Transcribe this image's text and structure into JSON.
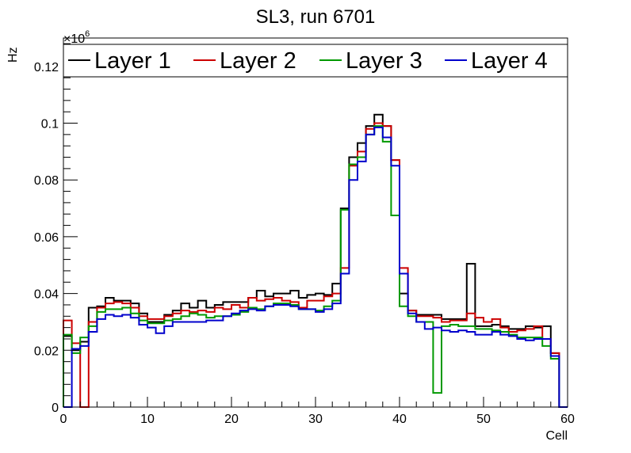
{
  "chart_data": {
    "type": "line",
    "title": "SL3, run 6701",
    "xlabel": "Cell",
    "ylabel": "Hz",
    "y_multiplier_label": "×10",
    "y_multiplier_exp": "6",
    "xlim": [
      0,
      60
    ],
    "ylim": [
      0,
      0.13
    ],
    "x_ticks": [
      0,
      10,
      20,
      30,
      40,
      50,
      60
    ],
    "x_tick_labels": [
      "0",
      "10",
      "20",
      "30",
      "40",
      "50",
      "60"
    ],
    "y_ticks": [
      0,
      0.02,
      0.04,
      0.06,
      0.08,
      0.1,
      0.12
    ],
    "y_tick_labels": [
      "0",
      "0.02",
      "0.04",
      "0.06",
      "0.08",
      "0.1",
      "0.12"
    ],
    "legend_position": "top",
    "bin_edges_start": 0,
    "bin_width": 1,
    "grid": false,
    "series": [
      {
        "name": "Layer 1",
        "color": "#000000",
        "values": [
          0.025,
          0.02,
          0.023,
          0.035,
          0.0355,
          0.0385,
          0.0375,
          0.0375,
          0.0365,
          0.033,
          0.03,
          0.03,
          0.0325,
          0.034,
          0.0365,
          0.035,
          0.0375,
          0.035,
          0.036,
          0.037,
          0.037,
          0.037,
          0.0385,
          0.041,
          0.039,
          0.04,
          0.04,
          0.041,
          0.0385,
          0.0395,
          0.04,
          0.0395,
          0.0435,
          0.07,
          0.088,
          0.093,
          0.099,
          0.103,
          0.099,
          0.087,
          0.04,
          0.034,
          0.0325,
          0.0325,
          0.0325,
          0.031,
          0.031,
          0.031,
          0.0505,
          0.0285,
          0.0285,
          0.029,
          0.0285,
          0.0275,
          0.0275,
          0.0285,
          0.028,
          0.0285,
          0.019,
          0.0
        ]
      },
      {
        "name": "Layer 2",
        "color": "#cc0000",
        "values": [
          0.0305,
          0.0225,
          0.0,
          0.03,
          0.035,
          0.0365,
          0.037,
          0.0365,
          0.035,
          0.032,
          0.031,
          0.031,
          0.032,
          0.033,
          0.034,
          0.0335,
          0.034,
          0.0335,
          0.035,
          0.0345,
          0.036,
          0.035,
          0.0385,
          0.0375,
          0.038,
          0.0385,
          0.0375,
          0.037,
          0.035,
          0.0375,
          0.0375,
          0.039,
          0.04,
          0.049,
          0.085,
          0.09,
          0.098,
          0.1,
          0.099,
          0.087,
          0.049,
          0.034,
          0.032,
          0.032,
          0.0315,
          0.03,
          0.0305,
          0.0305,
          0.033,
          0.0315,
          0.03,
          0.031,
          0.028,
          0.0265,
          0.027,
          0.0275,
          0.0285,
          0.024,
          0.019,
          0.0
        ]
      },
      {
        "name": "Layer 3",
        "color": "#009900",
        "values": [
          0.0255,
          0.019,
          0.0245,
          0.0285,
          0.0335,
          0.0345,
          0.0345,
          0.035,
          0.033,
          0.0305,
          0.0295,
          0.0295,
          0.0305,
          0.031,
          0.032,
          0.033,
          0.0325,
          0.0315,
          0.032,
          0.032,
          0.0325,
          0.0335,
          0.035,
          0.0345,
          0.0355,
          0.0365,
          0.0365,
          0.036,
          0.0345,
          0.0345,
          0.034,
          0.0355,
          0.0375,
          0.0695,
          0.0855,
          0.088,
          0.096,
          0.099,
          0.0935,
          0.0675,
          0.0355,
          0.032,
          0.03,
          0.03,
          0.005,
          0.0285,
          0.029,
          0.0285,
          0.0285,
          0.0275,
          0.0275,
          0.027,
          0.0265,
          0.0255,
          0.0245,
          0.0245,
          0.0245,
          0.0215,
          0.017,
          0.0
        ]
      },
      {
        "name": "Layer 4",
        "color": "#0000cc",
        "values": [
          0.0,
          0.0205,
          0.0215,
          0.0265,
          0.031,
          0.0325,
          0.032,
          0.0325,
          0.0315,
          0.029,
          0.028,
          0.026,
          0.0285,
          0.03,
          0.03,
          0.03,
          0.03,
          0.0305,
          0.0305,
          0.032,
          0.033,
          0.034,
          0.0345,
          0.034,
          0.0355,
          0.036,
          0.036,
          0.0355,
          0.0345,
          0.0345,
          0.0335,
          0.0345,
          0.0365,
          0.047,
          0.08,
          0.0865,
          0.096,
          0.0985,
          0.095,
          0.085,
          0.047,
          0.033,
          0.03,
          0.0275,
          0.028,
          0.027,
          0.0265,
          0.027,
          0.0265,
          0.0255,
          0.0255,
          0.0265,
          0.0255,
          0.025,
          0.024,
          0.0235,
          0.024,
          0.024,
          0.018,
          0.0
        ]
      }
    ]
  }
}
